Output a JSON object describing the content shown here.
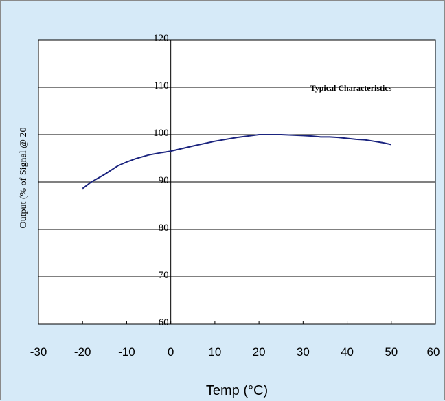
{
  "chart_data": {
    "type": "line",
    "title": "",
    "annotation": "Typical Characteristics",
    "xlabel": "Temp (°C)",
    "ylabel": "Output (% of Signal @ 20",
    "xlim": [
      -30,
      60
    ],
    "ylim": [
      60,
      120
    ],
    "x_ticks": [
      -30,
      -20,
      -10,
      0,
      10,
      20,
      30,
      40,
      50,
      60
    ],
    "y_ticks": [
      60,
      70,
      80,
      90,
      100,
      110,
      120
    ],
    "grid": "horizontal",
    "series": [
      {
        "color": "#1a237e",
        "x": [
          -20,
          -18,
          -15,
          -12,
          -10,
          -8,
          -5,
          -2,
          0,
          5,
          10,
          15,
          20,
          25,
          30,
          32,
          34,
          36,
          38,
          40,
          42,
          44,
          46,
          48,
          50
        ],
        "y": [
          88.6,
          90.0,
          91.6,
          93.4,
          94.2,
          94.9,
          95.7,
          96.2,
          96.5,
          97.6,
          98.6,
          99.4,
          100.0,
          100.0,
          99.8,
          99.7,
          99.5,
          99.5,
          99.4,
          99.2,
          99.0,
          98.9,
          98.6,
          98.3,
          97.9
        ]
      }
    ]
  }
}
